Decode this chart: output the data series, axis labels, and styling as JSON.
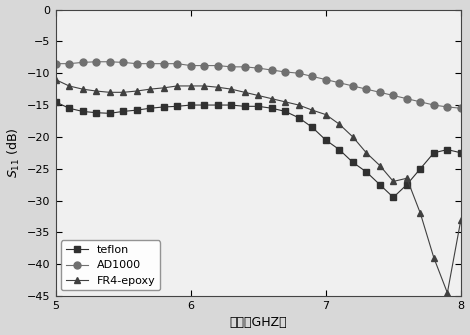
{
  "title": "",
  "xlabel": "频率（GHZ）",
  "ylabel": "$S_{11}$ (dB)",
  "xlim": [
    5,
    8
  ],
  "ylim": [
    -45,
    0
  ],
  "xticks": [
    5,
    6,
    7,
    8
  ],
  "yticks": [
    0,
    -5,
    -10,
    -15,
    -20,
    -25,
    -30,
    -35,
    -40,
    -45
  ],
  "teflon_x": [
    5.0,
    5.1,
    5.2,
    5.3,
    5.4,
    5.5,
    5.6,
    5.7,
    5.8,
    5.9,
    6.0,
    6.1,
    6.2,
    6.3,
    6.4,
    6.5,
    6.6,
    6.7,
    6.8,
    6.9,
    7.0,
    7.1,
    7.2,
    7.3,
    7.4,
    7.5,
    7.6,
    7.7,
    7.8,
    7.9,
    8.0
  ],
  "teflon_y": [
    -14.5,
    -15.5,
    -16.0,
    -16.2,
    -16.3,
    -16.0,
    -15.8,
    -15.5,
    -15.3,
    -15.2,
    -15.0,
    -15.0,
    -15.0,
    -15.0,
    -15.2,
    -15.2,
    -15.5,
    -16.0,
    -17.0,
    -18.5,
    -20.5,
    -22.0,
    -24.0,
    -25.5,
    -27.5,
    -29.5,
    -27.5,
    -25.0,
    -22.5,
    -22.0,
    -22.5
  ],
  "ad1000_x": [
    5.0,
    5.1,
    5.2,
    5.3,
    5.4,
    5.5,
    5.6,
    5.7,
    5.8,
    5.9,
    6.0,
    6.1,
    6.2,
    6.3,
    6.4,
    6.5,
    6.6,
    6.7,
    6.8,
    6.9,
    7.0,
    7.1,
    7.2,
    7.3,
    7.4,
    7.5,
    7.6,
    7.7,
    7.8,
    7.9,
    8.0
  ],
  "ad1000_y": [
    -8.5,
    -8.5,
    -8.3,
    -8.2,
    -8.2,
    -8.3,
    -8.5,
    -8.5,
    -8.5,
    -8.5,
    -8.8,
    -8.8,
    -8.8,
    -9.0,
    -9.0,
    -9.2,
    -9.5,
    -9.8,
    -10.0,
    -10.5,
    -11.0,
    -11.5,
    -12.0,
    -12.5,
    -13.0,
    -13.5,
    -14.0,
    -14.5,
    -15.0,
    -15.3,
    -15.5
  ],
  "fr4_x": [
    5.0,
    5.1,
    5.2,
    5.3,
    5.4,
    5.5,
    5.6,
    5.7,
    5.8,
    5.9,
    6.0,
    6.1,
    6.2,
    6.3,
    6.4,
    6.5,
    6.6,
    6.7,
    6.8,
    6.9,
    7.0,
    7.1,
    7.2,
    7.3,
    7.4,
    7.5,
    7.6,
    7.7,
    7.8,
    7.9,
    8.0
  ],
  "fr4_y": [
    -11.0,
    -12.0,
    -12.5,
    -12.8,
    -13.0,
    -13.0,
    -12.8,
    -12.5,
    -12.3,
    -12.0,
    -12.0,
    -12.0,
    -12.2,
    -12.5,
    -13.0,
    -13.5,
    -14.0,
    -14.5,
    -15.0,
    -15.8,
    -16.5,
    -18.0,
    -20.0,
    -22.5,
    -24.5,
    -27.0,
    -26.5,
    -32.0,
    -39.0,
    -44.5,
    -33.0
  ],
  "teflon_color": "#303030",
  "ad1000_color": "#707070",
  "fr4_color": "#404040",
  "plot_bg_color": "#f0f0f0",
  "fig_bg_color": "#d8d8d8",
  "marker_teflon": "s",
  "marker_ad1000": "o",
  "marker_fr4": "^",
  "legend_teflon": "teflon",
  "legend_ad1000": "AD1000",
  "legend_fr4": "FR4-epoxy"
}
